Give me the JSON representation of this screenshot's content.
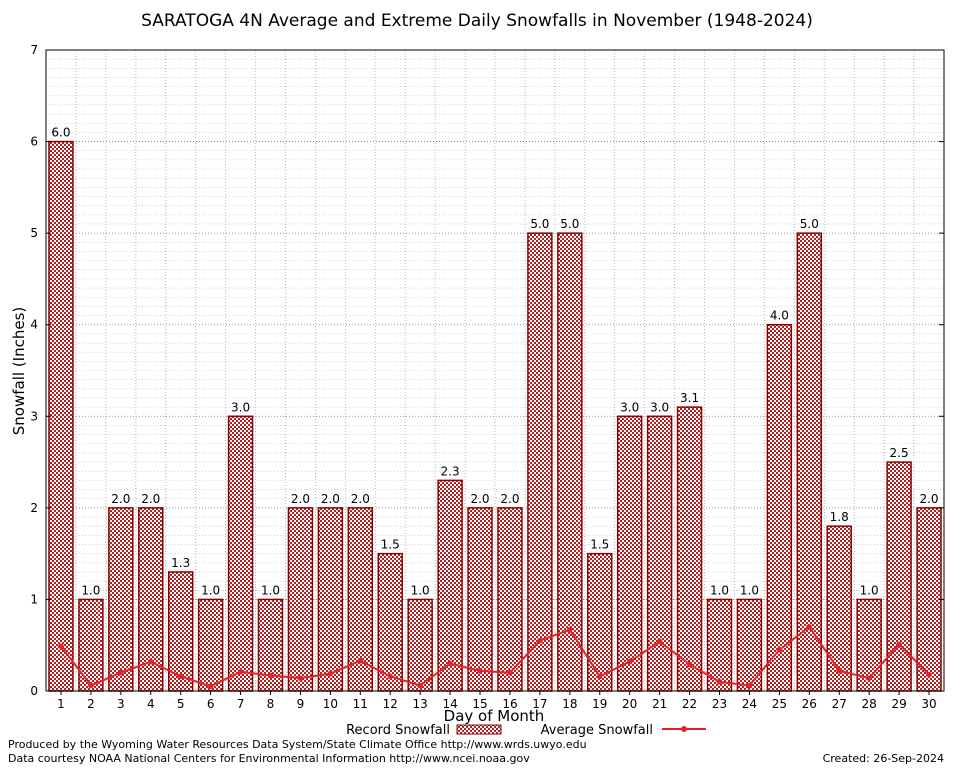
{
  "chart_data": {
    "type": "bar",
    "title": "SARATOGA 4N Average and Extreme Daily Snowfalls in November (1948-2024)",
    "xlabel": "Day of Month",
    "ylabel": "Snowfall (Inches)",
    "ylim": [
      0,
      7
    ],
    "yticks": [
      "0",
      "1",
      "2",
      "3",
      "4",
      "5",
      "6",
      "7"
    ],
    "categories": [
      "1",
      "2",
      "3",
      "4",
      "5",
      "6",
      "7",
      "8",
      "9",
      "10",
      "11",
      "12",
      "13",
      "14",
      "15",
      "16",
      "17",
      "18",
      "19",
      "20",
      "21",
      "22",
      "23",
      "24",
      "25",
      "26",
      "27",
      "28",
      "29",
      "30"
    ],
    "series": [
      {
        "name": "Record Snowfall",
        "kind": "bar",
        "values": [
          6.0,
          1.0,
          2.0,
          2.0,
          1.3,
          1.0,
          3.0,
          1.0,
          2.0,
          2.0,
          2.0,
          1.5,
          1.0,
          2.3,
          2.0,
          2.0,
          5.0,
          5.0,
          1.5,
          3.0,
          3.0,
          3.1,
          1.0,
          1.0,
          4.0,
          5.0,
          1.8,
          1.0,
          2.5,
          2.0
        ],
        "labels": [
          "6.0",
          "1.0",
          "2.0",
          "2.0",
          "1.3",
          "1.0",
          "3.0",
          "1.0",
          "2.0",
          "2.0",
          "2.0",
          "1.5",
          "1.0",
          "2.3",
          "2.0",
          "2.0",
          "5.0",
          "5.0",
          "1.5",
          "3.0",
          "3.0",
          "3.1",
          "1.0",
          "1.0",
          "4.0",
          "5.0",
          "1.8",
          "1.0",
          "2.5",
          "2.0"
        ]
      },
      {
        "name": "Average Snowfall",
        "kind": "line",
        "values": [
          0.49,
          0.06,
          0.2,
          0.32,
          0.16,
          0.05,
          0.21,
          0.17,
          0.14,
          0.19,
          0.33,
          0.16,
          0.06,
          0.3,
          0.22,
          0.2,
          0.55,
          0.67,
          0.16,
          0.32,
          0.54,
          0.29,
          0.1,
          0.06,
          0.45,
          0.7,
          0.22,
          0.14,
          0.51,
          0.18
        ]
      }
    ],
    "grid": true,
    "legend": "bottom-center",
    "colors": {
      "bar_stroke": "#8b0000",
      "bar_pattern": "#b22222",
      "line": "#e8202a"
    }
  },
  "footer": {
    "line1": "Produced by the Wyoming Water Resources Data System/State Climate Office http://www.wrds.uwyo.edu",
    "line2": "Data courtesy NOAA National Centers for Environmental Information http://www.ncei.noaa.gov",
    "created": "Created:  26-Sep-2024"
  }
}
